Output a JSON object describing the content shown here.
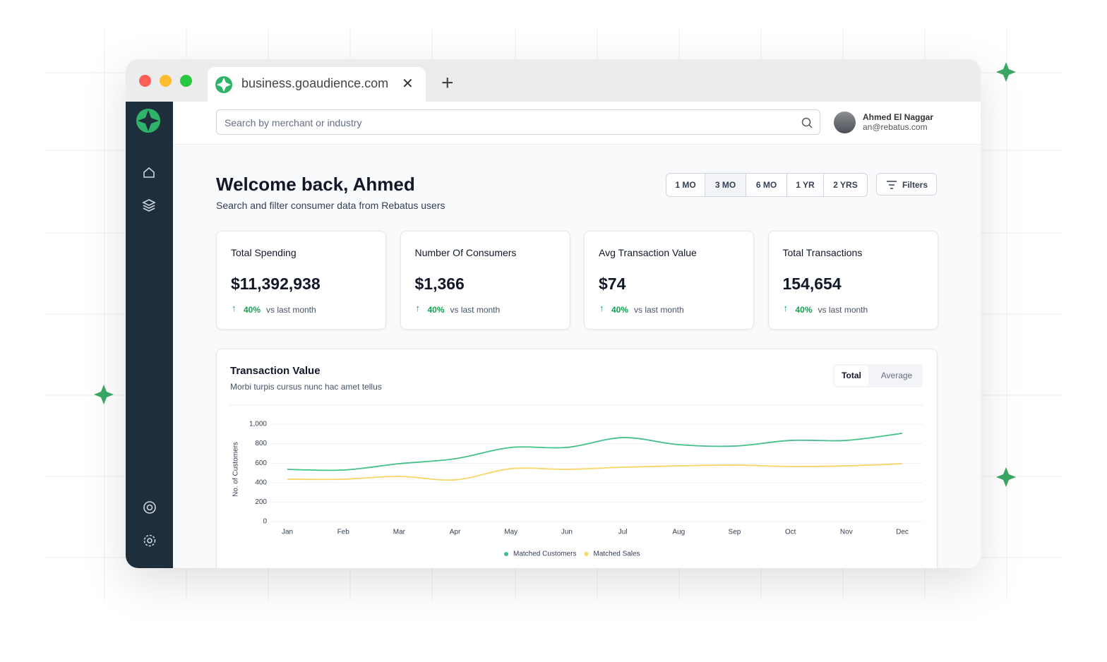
{
  "browser": {
    "tab_url": "business.goaudience.com"
  },
  "search": {
    "placeholder": "Search by merchant or industry"
  },
  "user": {
    "name": "Ahmed El Naggar",
    "email": "an@rebatus.com"
  },
  "header": {
    "title": "Welcome back, Ahmed",
    "subtitle": "Search and filter consumer data from Rebatus users"
  },
  "ranges": [
    "1 MO",
    "3 MO",
    "6 MO",
    "1 YR",
    "2 YRS"
  ],
  "filters": "Filters",
  "stats": [
    {
      "label": "Total Spending",
      "value": "$11,392,938",
      "change": "40%",
      "note": "vs last month"
    },
    {
      "label": "Number Of Consumers",
      "value": "$1,366",
      "change": "40%",
      "note": "vs last month"
    },
    {
      "label": "Avg Transaction Value",
      "value": "$74",
      "change": "40%",
      "note": "vs last month"
    },
    {
      "label": "Total Transactions",
      "value": "154,654",
      "change": "40%",
      "note": "vs last month"
    }
  ],
  "chart_toggle": [
    "Total",
    "Average"
  ],
  "chart_data": {
    "type": "line",
    "title": "Transaction Value",
    "subtitle": "Morbi turpis cursus nunc hac amet tellus",
    "y_label": "No. of Customers",
    "categories": [
      "Jan",
      "Feb",
      "Mar",
      "Apr",
      "May",
      "Jun",
      "Jul",
      "Aug",
      "Sep",
      "Oct",
      "Nov",
      "Dec"
    ],
    "series": [
      {
        "name": "Matched Customers",
        "color": "#45c08a",
        "values": [
          536,
          529,
          594,
          645,
          761,
          761,
          862,
          790,
          775,
          833,
          833,
          906
        ]
      },
      {
        "name": "Matched Sales",
        "color": "#f8d665",
        "values": [
          435,
          435,
          464,
          428,
          543,
          536,
          558,
          572,
          580,
          565,
          572,
          594
        ]
      }
    ],
    "ylim": [
      0,
      1000
    ],
    "yticks": [
      0,
      200,
      400,
      600,
      800,
      {
        "value": 1000,
        "label": "1,000"
      }
    ],
    "grid": true,
    "legend": "bottom"
  }
}
